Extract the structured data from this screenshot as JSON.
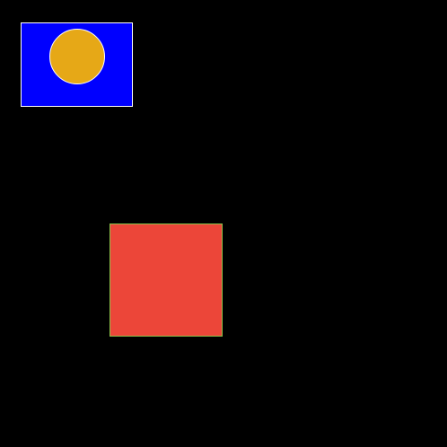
{
  "scene": {
    "background_color": "#000000",
    "blue_panel": {
      "fill_color": "#0000ff",
      "border_color": "#ffffff"
    },
    "yellow_circle": {
      "fill_color": "#e6a817",
      "border_color": "#ffffff"
    },
    "red_square": {
      "fill_color": "#ec4639",
      "border_color": "#8bc34a"
    }
  }
}
